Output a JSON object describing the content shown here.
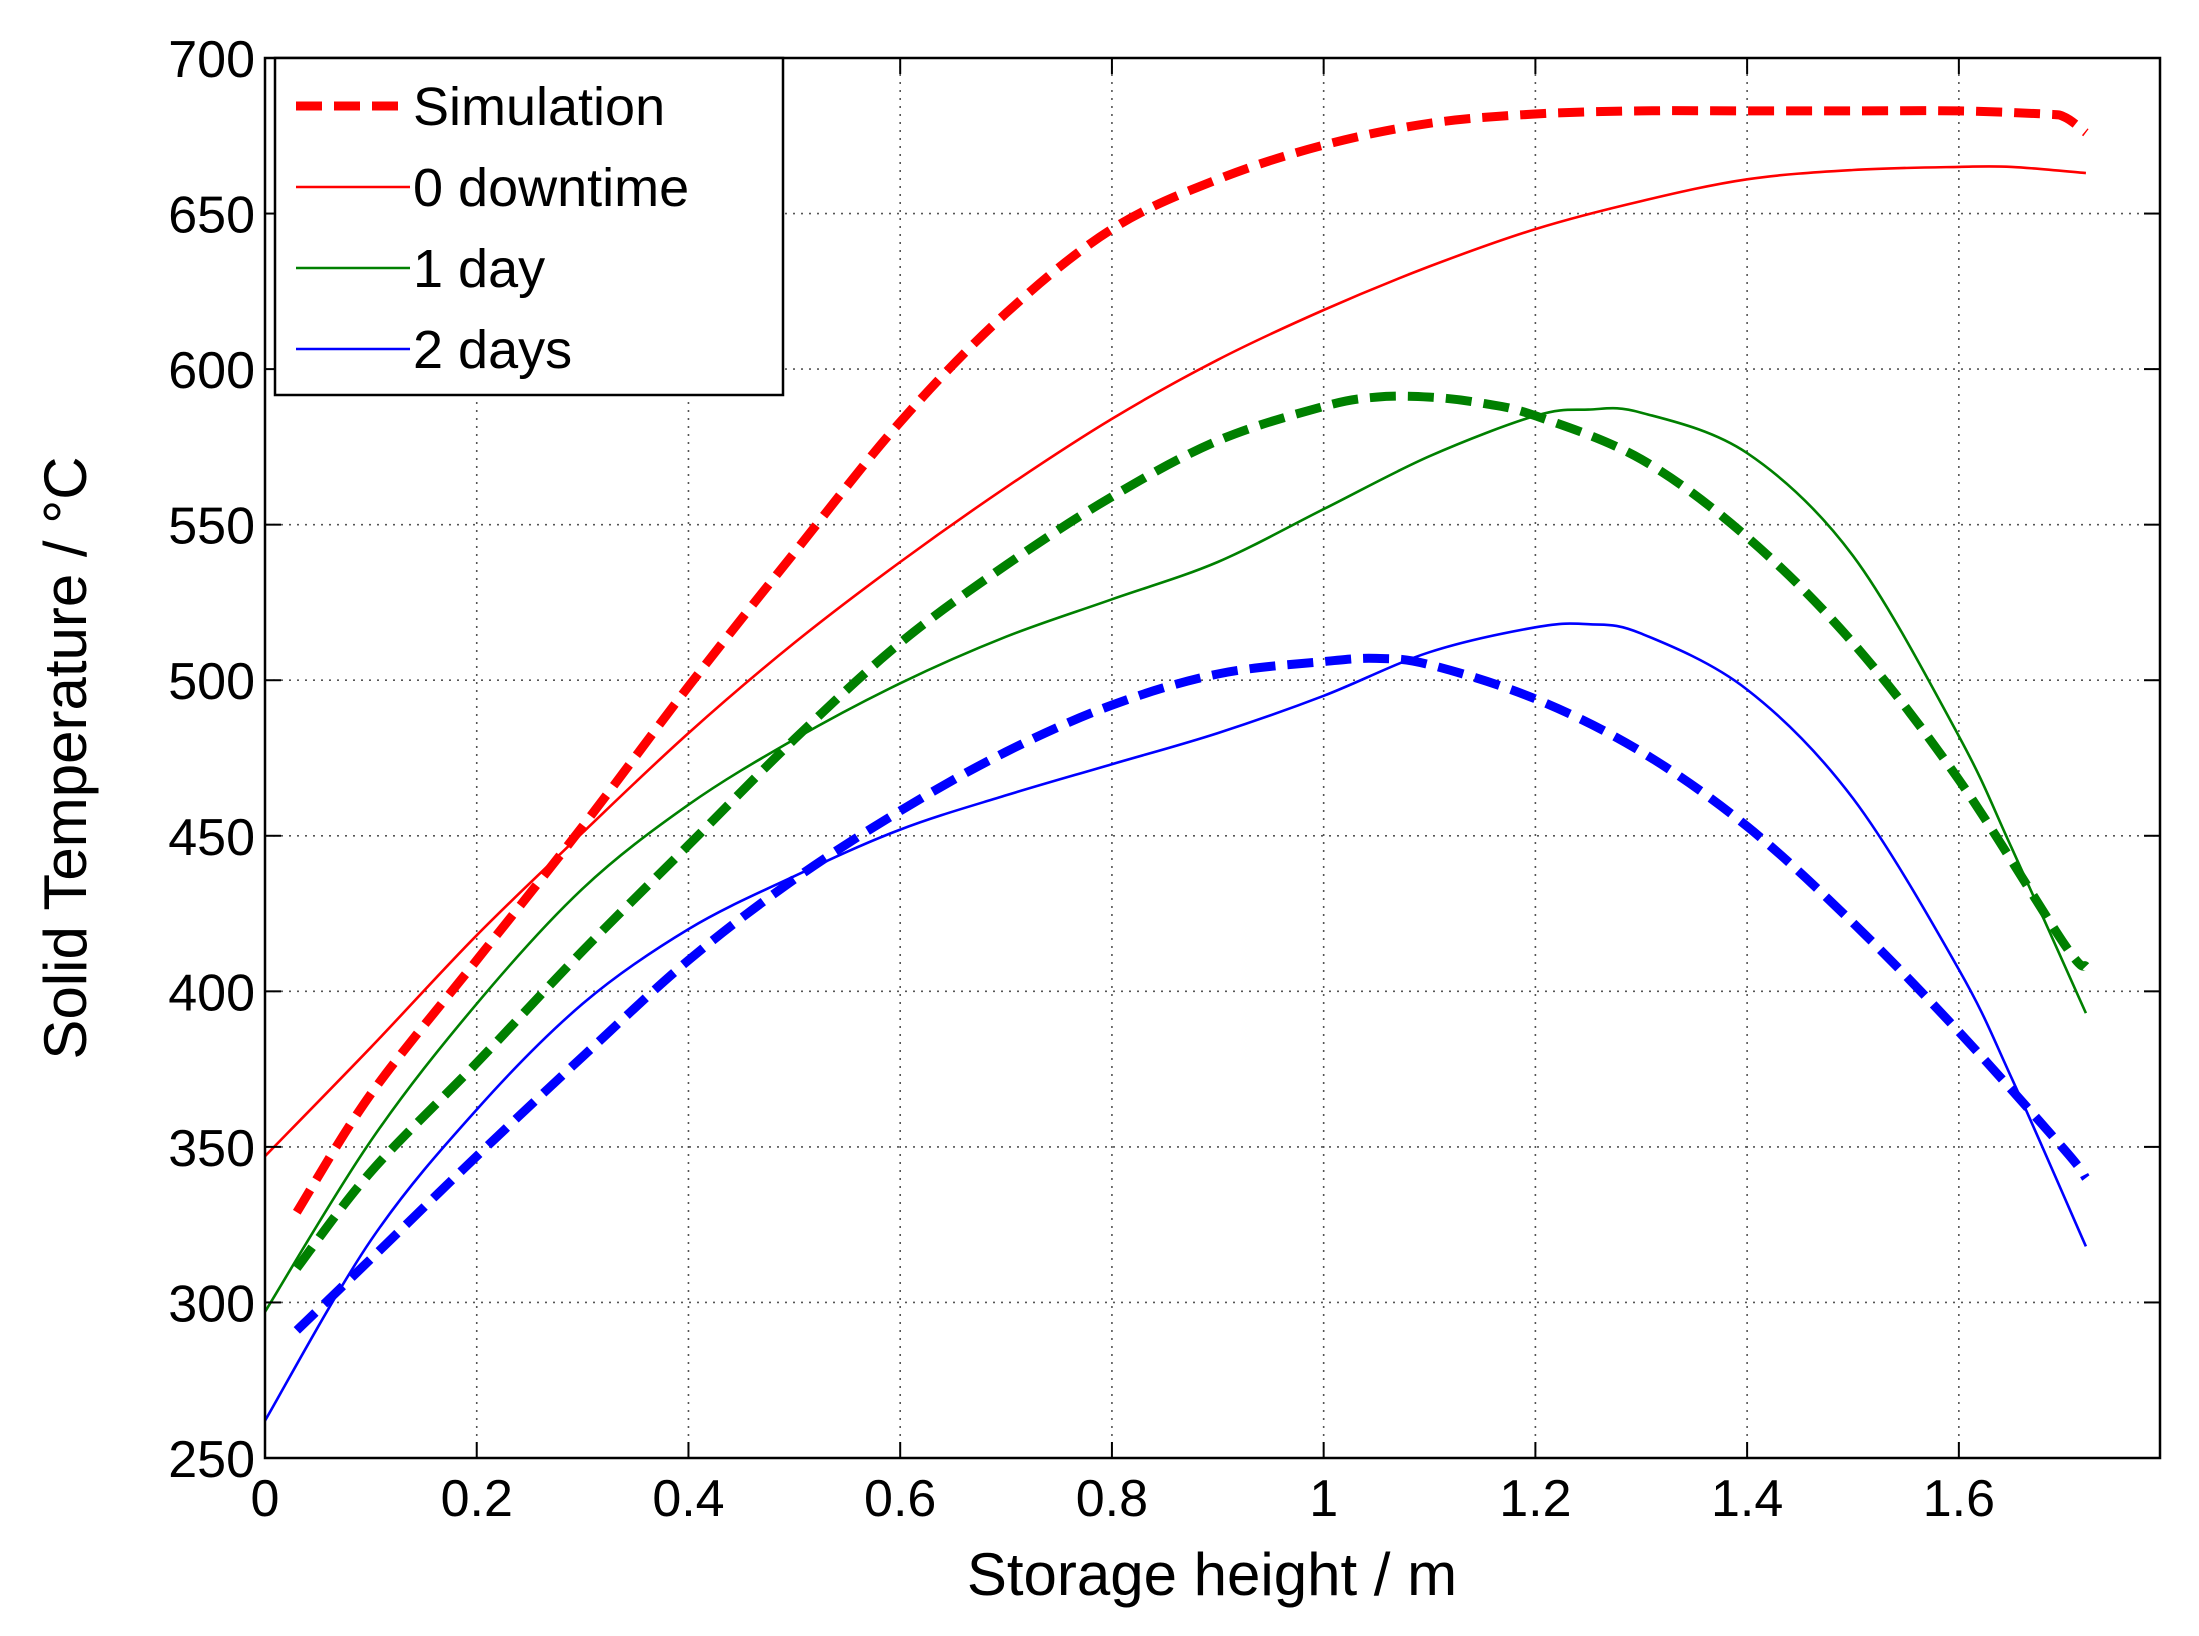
{
  "chart_data": {
    "type": "line",
    "title": "",
    "xlabel": "Storage height / m",
    "ylabel": "Solid Temperature / °C",
    "xlim": [
      0,
      1.79
    ],
    "ylim": [
      250,
      700
    ],
    "xticks": [
      0,
      0.2,
      0.4,
      0.6,
      0.8,
      1,
      1.2,
      1.4,
      1.6
    ],
    "xtick_labels": [
      "0",
      "0.2",
      "0.4",
      "0.6",
      "0.8",
      "1",
      "1.2",
      "1.4",
      "1.6"
    ],
    "yticks": [
      250,
      300,
      350,
      400,
      450,
      500,
      550,
      600,
      650,
      700
    ],
    "ytick_labels": [
      "250",
      "300",
      "350",
      "400",
      "450",
      "500",
      "550",
      "600",
      "650",
      "700"
    ],
    "grid": true,
    "legend_position": "top-left",
    "legend": [
      {
        "label": "Simulation",
        "color": "#ff0000",
        "style": "dashed"
      },
      {
        "label": "0 downtime",
        "color": "#ff0000",
        "style": "solid"
      },
      {
        "label": "1 day",
        "color": "#008000",
        "style": "solid"
      },
      {
        "label": "2 days",
        "color": "#0000ff",
        "style": "solid"
      }
    ],
    "series": [
      {
        "name": "0 downtime",
        "color": "#ff0000",
        "style": "solid",
        "x": [
          0,
          0.1,
          0.2,
          0.3,
          0.4,
          0.5,
          0.6,
          0.7,
          0.8,
          0.9,
          1.0,
          1.1,
          1.2,
          1.3,
          1.4,
          1.5,
          1.6,
          1.65,
          1.72
        ],
        "y": [
          347,
          382,
          418,
          451,
          483,
          512,
          538,
          562,
          584,
          603,
          619,
          633,
          645,
          654,
          661,
          664,
          665,
          665,
          663
        ]
      },
      {
        "name": "1 day",
        "color": "#008000",
        "style": "solid",
        "x": [
          0,
          0.1,
          0.2,
          0.3,
          0.4,
          0.5,
          0.6,
          0.7,
          0.8,
          0.9,
          1.0,
          1.1,
          1.2,
          1.25,
          1.3,
          1.4,
          1.5,
          1.6,
          1.65,
          1.72
        ],
        "y": [
          297,
          352,
          396,
          433,
          460,
          481,
          499,
          514,
          526,
          538,
          555,
          572,
          585,
          587,
          586,
          573,
          540,
          482,
          446,
          393
        ]
      },
      {
        "name": "2 days",
        "color": "#0000ff",
        "style": "solid",
        "x": [
          0,
          0.1,
          0.2,
          0.3,
          0.4,
          0.5,
          0.6,
          0.7,
          0.8,
          0.9,
          1.0,
          1.1,
          1.2,
          1.25,
          1.3,
          1.4,
          1.5,
          1.6,
          1.65,
          1.72
        ],
        "y": [
          262,
          320,
          362,
          396,
          420,
          437,
          452,
          463,
          473,
          483,
          495,
          509,
          517,
          518,
          515,
          497,
          462,
          407,
          372,
          318
        ]
      },
      {
        "name": "Simulation (0 downtime)",
        "color": "#ff0000",
        "style": "dashed",
        "x": [
          0.03,
          0.1,
          0.2,
          0.3,
          0.4,
          0.5,
          0.6,
          0.7,
          0.8,
          0.9,
          1.0,
          1.1,
          1.2,
          1.3,
          1.4,
          1.5,
          1.6,
          1.68,
          1.7,
          1.72
        ],
        "y": [
          329,
          367,
          410,
          453,
          498,
          541,
          583,
          618,
          645,
          661,
          672,
          679,
          682,
          683,
          683,
          683,
          683,
          682,
          681,
          676
        ]
      },
      {
        "name": "Simulation (1 day)",
        "color": "#008000",
        "style": "dashed",
        "x": [
          0.03,
          0.1,
          0.2,
          0.3,
          0.4,
          0.5,
          0.6,
          0.7,
          0.8,
          0.9,
          1.0,
          1.05,
          1.1,
          1.15,
          1.2,
          1.3,
          1.4,
          1.5,
          1.6,
          1.7,
          1.72
        ],
        "y": [
          311,
          342,
          377,
          413,
          447,
          481,
          512,
          537,
          559,
          577,
          588,
          591,
          591,
          589,
          585,
          571,
          546,
          512,
          468,
          415,
          408
        ]
      },
      {
        "name": "Simulation (2 days)",
        "color": "#0000ff",
        "style": "dashed",
        "x": [
          0.03,
          0.1,
          0.2,
          0.3,
          0.4,
          0.5,
          0.6,
          0.7,
          0.8,
          0.9,
          1.0,
          1.05,
          1.1,
          1.2,
          1.3,
          1.4,
          1.5,
          1.6,
          1.7,
          1.72
        ],
        "y": [
          291,
          314,
          347,
          379,
          410,
          436,
          458,
          477,
          492,
          502,
          506,
          507,
          505,
          494,
          477,
          453,
          422,
          387,
          349,
          340
        ]
      }
    ]
  }
}
